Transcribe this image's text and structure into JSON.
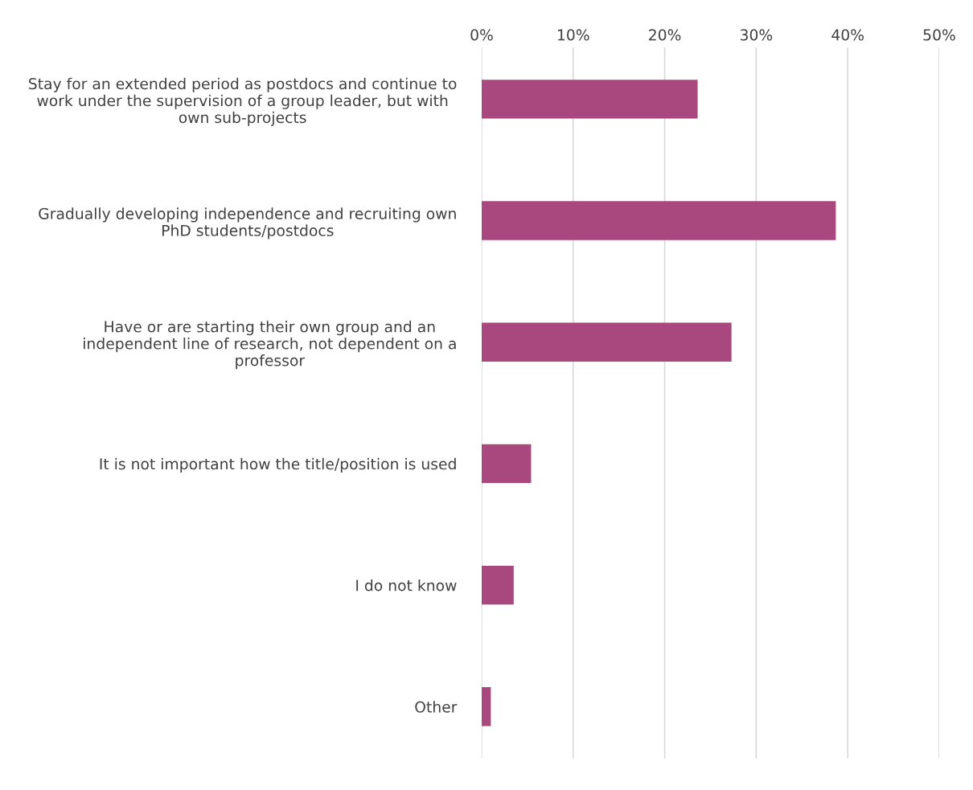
{
  "chart_data": {
    "type": "bar",
    "orientation": "horizontal",
    "categories": [
      "Stay for an extended period as postdocs and continue to\nwork under the supervision of a group leader, but with\nown sub-projects",
      "Gradually developing independence and recruiting own\nPhD students/postdocs",
      "Have or are starting their own group and an\nindependent line of research, not dependent on a\nprofessor",
      "It is not important how the title/position is used",
      "I do not know",
      "Other"
    ],
    "values": [
      23.6,
      38.7,
      27.3,
      5.4,
      3.5,
      1.0
    ],
    "color": "#a9487e",
    "xlim": [
      0,
      50
    ],
    "xticks": [
      {
        "value": 0,
        "label": "0%"
      },
      {
        "value": 10,
        "label": "10%"
      },
      {
        "value": 20,
        "label": "20%"
      },
      {
        "value": 30,
        "label": "30%"
      },
      {
        "value": 40,
        "label": "40%"
      },
      {
        "value": 50,
        "label": "50%"
      }
    ],
    "grid": "x",
    "legend": false
  }
}
